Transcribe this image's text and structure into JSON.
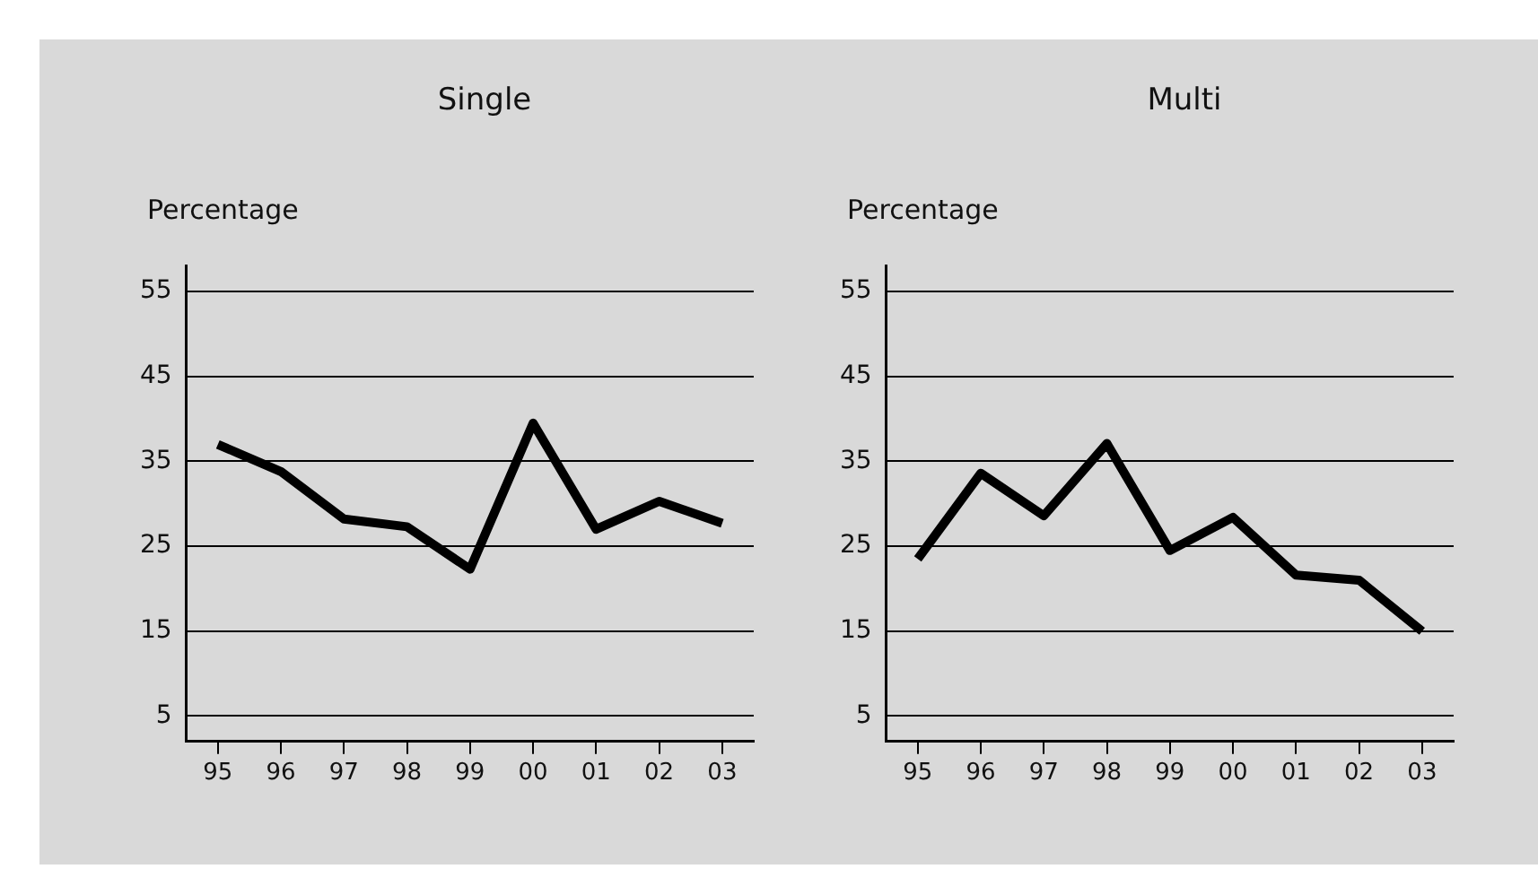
{
  "chart_data": [
    {
      "type": "line",
      "title": "Single",
      "ylabel": "Percentage",
      "categories": [
        "95",
        "96",
        "97",
        "98",
        "99",
        "00",
        "01",
        "02",
        "03"
      ],
      "series": [
        {
          "color": "#000000",
          "values": [
            37,
            33.8,
            28.2,
            27.3,
            22.3,
            39.5,
            27,
            30.3,
            27.7
          ]
        }
      ],
      "ylim": [
        2,
        58
      ],
      "yticks": [
        5,
        15,
        25,
        35,
        45,
        55
      ],
      "grid": "y",
      "marker": "none"
    },
    {
      "type": "line",
      "title": "Multi",
      "ylabel": "Percentage",
      "categories": [
        "95",
        "96",
        "97",
        "98",
        "99",
        "00",
        "01",
        "02",
        "03"
      ],
      "series": [
        {
          "color": "#000000",
          "values": [
            23.5,
            33.6,
            28.6,
            37.1,
            24.5,
            28.4,
            21.6,
            21,
            15
          ]
        }
      ],
      "ylim": [
        2,
        58
      ],
      "yticks": [
        5,
        15,
        25,
        35,
        45,
        55
      ],
      "grid": "y",
      "marker": "none"
    }
  ]
}
